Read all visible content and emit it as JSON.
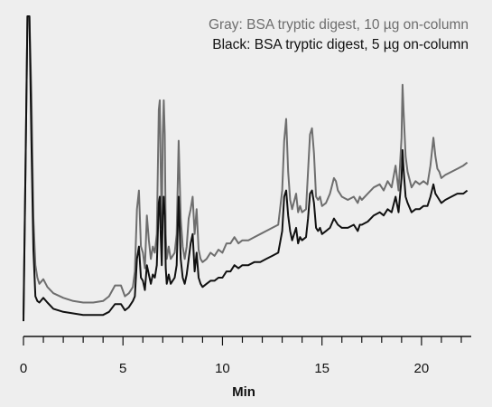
{
  "chart_data": {
    "type": "line",
    "title": "",
    "xlabel": "Min",
    "ylabel": "",
    "xlim": [
      0,
      22.5
    ],
    "ylim": [
      0,
      1
    ],
    "xticks_major": [
      "0",
      "5",
      "10",
      "15",
      "20"
    ],
    "grid": false,
    "legend": {
      "placement": "top-right",
      "entries": [
        {
          "text": "Gray: BSA tryptic digest, 10 µg on-column",
          "color": "#6e6e6e"
        },
        {
          "text": "Black: BSA tryptic digest, 5 µg on-column",
          "color": "#111111"
        }
      ]
    },
    "series": [
      {
        "name": "Gray: BSA tryptic digest, 10 µg on-column",
        "color": "#6e6e6e",
        "x": [
          0,
          0.1,
          0.2,
          0.25,
          0.3,
          0.4,
          0.5,
          0.6,
          0.7,
          0.8,
          1.0,
          1.2,
          1.5,
          2.0,
          2.5,
          3.0,
          3.5,
          4.0,
          4.3,
          4.6,
          4.9,
          5.1,
          5.3,
          5.5,
          5.6,
          5.7,
          5.8,
          5.9,
          6.0,
          6.1,
          6.2,
          6.3,
          6.4,
          6.5,
          6.6,
          6.7,
          6.8,
          6.85,
          6.9,
          6.95,
          7.0,
          7.05,
          7.1,
          7.15,
          7.2,
          7.3,
          7.4,
          7.6,
          7.7,
          7.8,
          7.9,
          8.0,
          8.1,
          8.2,
          8.3,
          8.4,
          8.5,
          8.6,
          8.7,
          8.8,
          8.9,
          9.0,
          9.2,
          9.4,
          9.6,
          9.8,
          10.0,
          10.2,
          10.4,
          10.6,
          10.8,
          11.0,
          11.3,
          11.6,
          11.9,
          12.2,
          12.5,
          12.8,
          13.0,
          13.1,
          13.2,
          13.3,
          13.4,
          13.5,
          13.7,
          13.8,
          13.9,
          14.0,
          14.2,
          14.3,
          14.4,
          14.5,
          14.6,
          14.7,
          14.8,
          14.9,
          15.0,
          15.2,
          15.4,
          15.6,
          15.7,
          15.8,
          16.0,
          16.3,
          16.6,
          16.8,
          16.9,
          17.0,
          17.3,
          17.6,
          17.9,
          18.1,
          18.3,
          18.5,
          18.7,
          18.85,
          19.0,
          19.05,
          19.1,
          19.2,
          19.3,
          19.5,
          19.7,
          19.9,
          20.1,
          20.3,
          20.45,
          20.6,
          20.7,
          20.8,
          20.9,
          21.0,
          21.2,
          21.5,
          21.8,
          22.1,
          22.3
        ],
        "y": [
          0.04,
          0.5,
          1.0,
          1.0,
          1.0,
          0.75,
          0.35,
          0.2,
          0.16,
          0.14,
          0.155,
          0.13,
          0.11,
          0.095,
          0.085,
          0.08,
          0.08,
          0.085,
          0.1,
          0.135,
          0.135,
          0.1,
          0.11,
          0.13,
          0.18,
          0.38,
          0.44,
          0.26,
          0.24,
          0.19,
          0.36,
          0.28,
          0.22,
          0.26,
          0.24,
          0.3,
          0.7,
          0.73,
          0.5,
          0.32,
          0.62,
          0.73,
          0.62,
          0.3,
          0.22,
          0.26,
          0.22,
          0.24,
          0.3,
          0.6,
          0.35,
          0.26,
          0.22,
          0.26,
          0.35,
          0.38,
          0.42,
          0.3,
          0.38,
          0.25,
          0.22,
          0.21,
          0.22,
          0.24,
          0.23,
          0.25,
          0.24,
          0.27,
          0.27,
          0.29,
          0.27,
          0.28,
          0.28,
          0.29,
          0.3,
          0.31,
          0.32,
          0.33,
          0.44,
          0.6,
          0.67,
          0.5,
          0.41,
          0.38,
          0.43,
          0.37,
          0.39,
          0.37,
          0.38,
          0.5,
          0.62,
          0.64,
          0.56,
          0.42,
          0.41,
          0.42,
          0.39,
          0.4,
          0.43,
          0.48,
          0.47,
          0.44,
          0.42,
          0.41,
          0.42,
          0.4,
          0.42,
          0.41,
          0.43,
          0.45,
          0.46,
          0.44,
          0.47,
          0.45,
          0.52,
          0.44,
          0.61,
          0.78,
          0.7,
          0.55,
          0.5,
          0.45,
          0.47,
          0.46,
          0.47,
          0.46,
          0.52,
          0.61,
          0.55,
          0.51,
          0.5,
          0.48,
          0.49,
          0.5,
          0.51,
          0.52,
          0.53
        ]
      },
      {
        "name": "Black: BSA tryptic digest, 5 µg on-column",
        "color": "#111111",
        "x": [
          0,
          0.1,
          0.2,
          0.25,
          0.3,
          0.4,
          0.5,
          0.6,
          0.7,
          0.8,
          1.0,
          1.2,
          1.5,
          2.0,
          2.5,
          3.0,
          3.5,
          4.0,
          4.3,
          4.6,
          4.9,
          5.1,
          5.3,
          5.5,
          5.6,
          5.7,
          5.8,
          5.9,
          6.0,
          6.1,
          6.2,
          6.3,
          6.4,
          6.5,
          6.6,
          6.7,
          6.8,
          6.85,
          6.9,
          6.95,
          7.0,
          7.05,
          7.1,
          7.15,
          7.2,
          7.3,
          7.4,
          7.6,
          7.7,
          7.8,
          7.9,
          8.0,
          8.1,
          8.2,
          8.3,
          8.4,
          8.5,
          8.6,
          8.7,
          8.8,
          8.9,
          9.0,
          9.2,
          9.4,
          9.6,
          9.8,
          10.0,
          10.2,
          10.4,
          10.6,
          10.8,
          11.0,
          11.3,
          11.6,
          11.9,
          12.2,
          12.5,
          12.8,
          13.0,
          13.1,
          13.2,
          13.3,
          13.4,
          13.5,
          13.7,
          13.8,
          13.9,
          14.0,
          14.2,
          14.3,
          14.4,
          14.5,
          14.6,
          14.7,
          14.8,
          14.9,
          15.0,
          15.2,
          15.4,
          15.6,
          15.7,
          15.8,
          16.0,
          16.3,
          16.6,
          16.8,
          16.9,
          17.0,
          17.3,
          17.6,
          17.9,
          18.1,
          18.3,
          18.5,
          18.7,
          18.85,
          19.0,
          19.05,
          19.1,
          19.2,
          19.3,
          19.5,
          19.7,
          19.9,
          20.1,
          20.3,
          20.45,
          20.6,
          20.7,
          20.8,
          20.9,
          21.0,
          21.2,
          21.5,
          21.8,
          22.1,
          22.3
        ],
        "y": [
          0.02,
          0.5,
          1.0,
          1.0,
          1.0,
          0.6,
          0.25,
          0.1,
          0.085,
          0.08,
          0.095,
          0.08,
          0.06,
          0.05,
          0.045,
          0.04,
          0.04,
          0.04,
          0.05,
          0.075,
          0.075,
          0.055,
          0.065,
          0.085,
          0.1,
          0.22,
          0.26,
          0.16,
          0.15,
          0.12,
          0.2,
          0.17,
          0.14,
          0.17,
          0.16,
          0.2,
          0.4,
          0.42,
          0.29,
          0.2,
          0.36,
          0.42,
          0.36,
          0.19,
          0.14,
          0.17,
          0.14,
          0.16,
          0.2,
          0.42,
          0.22,
          0.16,
          0.14,
          0.17,
          0.22,
          0.27,
          0.3,
          0.18,
          0.24,
          0.16,
          0.14,
          0.13,
          0.14,
          0.15,
          0.15,
          0.16,
          0.16,
          0.18,
          0.18,
          0.2,
          0.19,
          0.2,
          0.2,
          0.21,
          0.21,
          0.22,
          0.23,
          0.24,
          0.31,
          0.42,
          0.44,
          0.36,
          0.31,
          0.28,
          0.32,
          0.27,
          0.29,
          0.28,
          0.29,
          0.35,
          0.43,
          0.44,
          0.4,
          0.32,
          0.31,
          0.32,
          0.3,
          0.31,
          0.32,
          0.35,
          0.34,
          0.33,
          0.32,
          0.32,
          0.33,
          0.31,
          0.33,
          0.33,
          0.34,
          0.36,
          0.37,
          0.36,
          0.38,
          0.37,
          0.42,
          0.37,
          0.48,
          0.57,
          0.51,
          0.42,
          0.4,
          0.37,
          0.38,
          0.38,
          0.39,
          0.39,
          0.42,
          0.46,
          0.43,
          0.42,
          0.41,
          0.4,
          0.41,
          0.42,
          0.43,
          0.43,
          0.44
        ]
      }
    ]
  }
}
